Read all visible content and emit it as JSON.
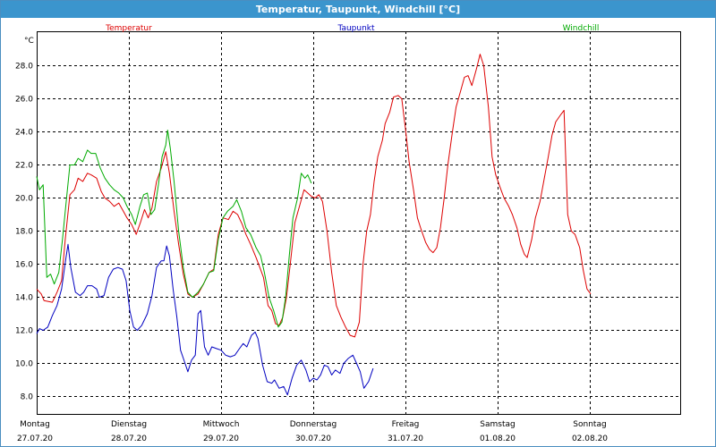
{
  "window": {
    "title": "Temperatur, Taupunkt, Windchill [°C]"
  },
  "chart_data": {
    "type": "line",
    "title": "Temperatur, Taupunkt, Windchill [°C]",
    "ylabel": "°C",
    "xlabel": "",
    "ylim": [
      7,
      30.5
    ],
    "xlim": [
      0,
      7.0
    ],
    "yticks": [
      "8.0",
      "10.0",
      "12.0",
      "14.0",
      "16.0",
      "18.0",
      "20.0",
      "22.0",
      "24.0",
      "26.0",
      "28.0"
    ],
    "grid": true,
    "legend_position": "top",
    "x_ticks": [
      {
        "day": "Montag",
        "date": "27.07.20"
      },
      {
        "day": "Dienstag",
        "date": "28.07.20"
      },
      {
        "day": "Mittwoch",
        "date": "29.07.20"
      },
      {
        "day": "Donnerstag",
        "date": "30.07.20"
      },
      {
        "day": "Freitag",
        "date": "31.07.20"
      },
      {
        "day": "Samstag",
        "date": "01.08.20"
      },
      {
        "day": "Sonntag",
        "date": "02.08.20"
      }
    ],
    "series": [
      {
        "name": "Temperatur",
        "color": "#dd0000",
        "points": [
          [
            0.0,
            14.5
          ],
          [
            0.05,
            14.2
          ],
          [
            0.08,
            13.8
          ],
          [
            0.17,
            13.7
          ],
          [
            0.22,
            14.3
          ],
          [
            0.27,
            15.0
          ],
          [
            0.31,
            17.5
          ],
          [
            0.36,
            20.2
          ],
          [
            0.41,
            20.5
          ],
          [
            0.45,
            21.2
          ],
          [
            0.5,
            21.0
          ],
          [
            0.55,
            21.5
          ],
          [
            0.59,
            21.4
          ],
          [
            0.65,
            21.2
          ],
          [
            0.7,
            20.4
          ],
          [
            0.74,
            20.0
          ],
          [
            0.79,
            19.8
          ],
          [
            0.84,
            19.5
          ],
          [
            0.89,
            19.7
          ],
          [
            0.94,
            19.2
          ],
          [
            0.98,
            18.8
          ],
          [
            1.03,
            18.4
          ],
          [
            1.08,
            17.8
          ],
          [
            1.13,
            18.6
          ],
          [
            1.17,
            19.3
          ],
          [
            1.21,
            18.8
          ],
          [
            1.25,
            19.4
          ],
          [
            1.3,
            21.0
          ],
          [
            1.35,
            21.8
          ],
          [
            1.4,
            22.8
          ],
          [
            1.44,
            21.5
          ],
          [
            1.49,
            19.2
          ],
          [
            1.54,
            17.2
          ],
          [
            1.59,
            15.4
          ],
          [
            1.64,
            14.2
          ],
          [
            1.69,
            14.0
          ],
          [
            1.75,
            14.2
          ],
          [
            1.81,
            14.8
          ],
          [
            1.87,
            15.5
          ],
          [
            1.92,
            15.7
          ],
          [
            1.97,
            17.8
          ],
          [
            2.02,
            18.8
          ],
          [
            2.08,
            18.7
          ],
          [
            2.13,
            19.2
          ],
          [
            2.18,
            19.0
          ],
          [
            2.23,
            18.4
          ],
          [
            2.27,
            17.8
          ],
          [
            2.32,
            17.2
          ],
          [
            2.38,
            16.4
          ],
          [
            2.42,
            15.8
          ],
          [
            2.46,
            15.2
          ],
          [
            2.51,
            13.5
          ],
          [
            2.55,
            13.2
          ],
          [
            2.59,
            12.4
          ],
          [
            2.63,
            12.3
          ],
          [
            2.67,
            12.8
          ],
          [
            2.71,
            14.0
          ],
          [
            2.75,
            16.0
          ],
          [
            2.8,
            18.5
          ],
          [
            2.85,
            19.5
          ],
          [
            2.9,
            20.5
          ],
          [
            2.94,
            20.3
          ],
          [
            2.98,
            20.1
          ],
          [
            3.02,
            20.0
          ],
          [
            3.06,
            20.2
          ],
          [
            3.1,
            19.8
          ],
          [
            3.15,
            18.0
          ],
          [
            3.2,
            15.5
          ],
          [
            3.25,
            13.5
          ],
          [
            3.3,
            12.8
          ],
          [
            3.35,
            12.2
          ],
          [
            3.4,
            11.7
          ],
          [
            3.45,
            11.6
          ],
          [
            3.5,
            12.5
          ],
          [
            3.54,
            16.0
          ],
          [
            3.58,
            18.0
          ],
          [
            3.62,
            19.0
          ],
          [
            3.66,
            21.0
          ],
          [
            3.7,
            22.5
          ],
          [
            3.75,
            23.5
          ],
          [
            3.78,
            24.5
          ],
          [
            3.83,
            25.2
          ],
          [
            3.87,
            26.1
          ],
          [
            3.92,
            26.2
          ],
          [
            3.96,
            26.0
          ],
          [
            4.0,
            24.2
          ],
          [
            4.04,
            22.2
          ],
          [
            4.09,
            20.4
          ],
          [
            4.13,
            18.8
          ],
          [
            4.17,
            18.1
          ],
          [
            4.22,
            17.3
          ],
          [
            4.26,
            16.9
          ],
          [
            4.3,
            16.7
          ],
          [
            4.34,
            17.0
          ],
          [
            4.38,
            18.2
          ],
          [
            4.42,
            20.0
          ],
          [
            4.46,
            22.0
          ],
          [
            4.51,
            24.0
          ],
          [
            4.55,
            25.5
          ],
          [
            4.6,
            26.5
          ],
          [
            4.64,
            27.3
          ],
          [
            4.68,
            27.4
          ],
          [
            4.72,
            26.8
          ],
          [
            4.77,
            27.8
          ],
          [
            4.81,
            28.7
          ],
          [
            4.85,
            28.0
          ],
          [
            4.9,
            25.5
          ],
          [
            4.94,
            22.5
          ],
          [
            4.98,
            21.4
          ],
          [
            5.03,
            20.6
          ],
          [
            5.07,
            20.0
          ],
          [
            5.12,
            19.5
          ],
          [
            5.16,
            19.0
          ],
          [
            5.21,
            18.2
          ],
          [
            5.25,
            17.2
          ],
          [
            5.29,
            16.6
          ],
          [
            5.32,
            16.4
          ],
          [
            5.37,
            17.5
          ],
          [
            5.41,
            18.8
          ],
          [
            5.46,
            19.8
          ],
          [
            5.5,
            21.0
          ],
          [
            5.55,
            22.5
          ],
          [
            5.59,
            23.8
          ],
          [
            5.63,
            24.6
          ],
          [
            5.68,
            25.0
          ],
          [
            5.72,
            25.3
          ],
          [
            5.76,
            19.0
          ],
          [
            5.8,
            18.0
          ],
          [
            5.84,
            17.8
          ],
          [
            5.89,
            17.0
          ],
          [
            5.93,
            15.6
          ],
          [
            5.97,
            14.5
          ],
          [
            6.01,
            14.2
          ]
        ]
      },
      {
        "name": "Taupunkt",
        "color": "#0000c0",
        "points": [
          [
            0.0,
            11.8
          ],
          [
            0.03,
            12.1
          ],
          [
            0.07,
            12.0
          ],
          [
            0.12,
            12.2
          ],
          [
            0.17,
            12.9
          ],
          [
            0.22,
            13.5
          ],
          [
            0.27,
            14.5
          ],
          [
            0.32,
            16.5
          ],
          [
            0.34,
            17.2
          ],
          [
            0.37,
            15.8
          ],
          [
            0.42,
            14.3
          ],
          [
            0.47,
            14.1
          ],
          [
            0.51,
            14.3
          ],
          [
            0.55,
            14.7
          ],
          [
            0.6,
            14.7
          ],
          [
            0.65,
            14.5
          ],
          [
            0.68,
            14.0
          ],
          [
            0.73,
            14.1
          ],
          [
            0.78,
            15.2
          ],
          [
            0.83,
            15.7
          ],
          [
            0.88,
            15.8
          ],
          [
            0.93,
            15.7
          ],
          [
            0.97,
            15.0
          ],
          [
            1.01,
            13.2
          ],
          [
            1.05,
            12.2
          ],
          [
            1.09,
            12.0
          ],
          [
            1.14,
            12.3
          ],
          [
            1.2,
            13.0
          ],
          [
            1.25,
            14.1
          ],
          [
            1.3,
            15.8
          ],
          [
            1.35,
            16.2
          ],
          [
            1.38,
            16.2
          ],
          [
            1.41,
            17.1
          ],
          [
            1.44,
            16.5
          ],
          [
            1.48,
            14.5
          ],
          [
            1.52,
            12.8
          ],
          [
            1.56,
            10.8
          ],
          [
            1.61,
            10.0
          ],
          [
            1.64,
            9.5
          ],
          [
            1.68,
            10.2
          ],
          [
            1.72,
            10.5
          ],
          [
            1.75,
            13.0
          ],
          [
            1.78,
            13.2
          ],
          [
            1.82,
            11.0
          ],
          [
            1.86,
            10.5
          ],
          [
            1.9,
            11.0
          ],
          [
            1.95,
            10.9
          ],
          [
            2.0,
            10.8
          ],
          [
            2.05,
            10.5
          ],
          [
            2.1,
            10.4
          ],
          [
            2.15,
            10.5
          ],
          [
            2.2,
            10.9
          ],
          [
            2.24,
            11.2
          ],
          [
            2.28,
            11.0
          ],
          [
            2.33,
            11.7
          ],
          [
            2.37,
            11.9
          ],
          [
            2.4,
            11.5
          ],
          [
            2.45,
            9.9
          ],
          [
            2.5,
            8.9
          ],
          [
            2.55,
            8.8
          ],
          [
            2.58,
            9.0
          ],
          [
            2.63,
            8.5
          ],
          [
            2.68,
            8.6
          ],
          [
            2.72,
            8.1
          ],
          [
            2.77,
            9.1
          ],
          [
            2.82,
            9.9
          ],
          [
            2.87,
            10.2
          ],
          [
            2.92,
            9.6
          ],
          [
            2.96,
            8.9
          ],
          [
            3.0,
            9.1
          ],
          [
            3.04,
            9.0
          ],
          [
            3.08,
            9.3
          ],
          [
            3.12,
            9.9
          ],
          [
            3.16,
            9.8
          ],
          [
            3.2,
            9.3
          ],
          [
            3.24,
            9.6
          ],
          [
            3.29,
            9.4
          ],
          [
            3.33,
            10.0
          ],
          [
            3.38,
            10.3
          ],
          [
            3.43,
            10.5
          ],
          [
            3.47,
            10.0
          ],
          [
            3.51,
            9.5
          ],
          [
            3.55,
            8.5
          ],
          [
            3.6,
            8.9
          ],
          [
            3.65,
            9.7
          ]
        ]
      },
      {
        "name": "Windchill",
        "color": "#00aa00",
        "points": [
          [
            0.0,
            21.3
          ],
          [
            0.03,
            20.5
          ],
          [
            0.07,
            20.8
          ],
          [
            0.11,
            15.2
          ],
          [
            0.15,
            15.4
          ],
          [
            0.19,
            14.8
          ],
          [
            0.24,
            15.5
          ],
          [
            0.28,
            17.5
          ],
          [
            0.32,
            19.8
          ],
          [
            0.36,
            22.0
          ],
          [
            0.41,
            22.0
          ],
          [
            0.45,
            22.4
          ],
          [
            0.5,
            22.2
          ],
          [
            0.55,
            22.9
          ],
          [
            0.59,
            22.7
          ],
          [
            0.64,
            22.7
          ],
          [
            0.69,
            21.8
          ],
          [
            0.74,
            21.2
          ],
          [
            0.79,
            20.8
          ],
          [
            0.84,
            20.5
          ],
          [
            0.89,
            20.3
          ],
          [
            0.94,
            20.0
          ],
          [
            0.98,
            19.5
          ],
          [
            1.03,
            19.0
          ],
          [
            1.07,
            18.4
          ],
          [
            1.12,
            19.5
          ],
          [
            1.16,
            20.2
          ],
          [
            1.2,
            20.3
          ],
          [
            1.24,
            19.0
          ],
          [
            1.28,
            19.3
          ],
          [
            1.32,
            20.8
          ],
          [
            1.36,
            22.5
          ],
          [
            1.4,
            23.2
          ],
          [
            1.42,
            24.1
          ],
          [
            1.45,
            23.0
          ],
          [
            1.49,
            21.0
          ],
          [
            1.54,
            18.0
          ],
          [
            1.59,
            15.8
          ],
          [
            1.64,
            14.3
          ],
          [
            1.69,
            14.0
          ],
          [
            1.75,
            14.3
          ],
          [
            1.81,
            14.8
          ],
          [
            1.87,
            15.5
          ],
          [
            1.92,
            15.6
          ],
          [
            1.97,
            17.5
          ],
          [
            2.02,
            18.8
          ],
          [
            2.07,
            19.2
          ],
          [
            2.13,
            19.5
          ],
          [
            2.17,
            19.9
          ],
          [
            2.22,
            19.2
          ],
          [
            2.27,
            18.2
          ],
          [
            2.32,
            17.8
          ],
          [
            2.38,
            17.0
          ],
          [
            2.43,
            16.5
          ],
          [
            2.47,
            15.5
          ],
          [
            2.52,
            14.0
          ],
          [
            2.57,
            13.2
          ],
          [
            2.62,
            12.2
          ],
          [
            2.66,
            12.5
          ],
          [
            2.7,
            14.0
          ],
          [
            2.74,
            16.5
          ],
          [
            2.78,
            18.8
          ],
          [
            2.83,
            20.0
          ],
          [
            2.87,
            21.5
          ],
          [
            2.91,
            21.2
          ],
          [
            2.94,
            21.4
          ],
          [
            2.98,
            20.9
          ]
        ]
      }
    ]
  }
}
